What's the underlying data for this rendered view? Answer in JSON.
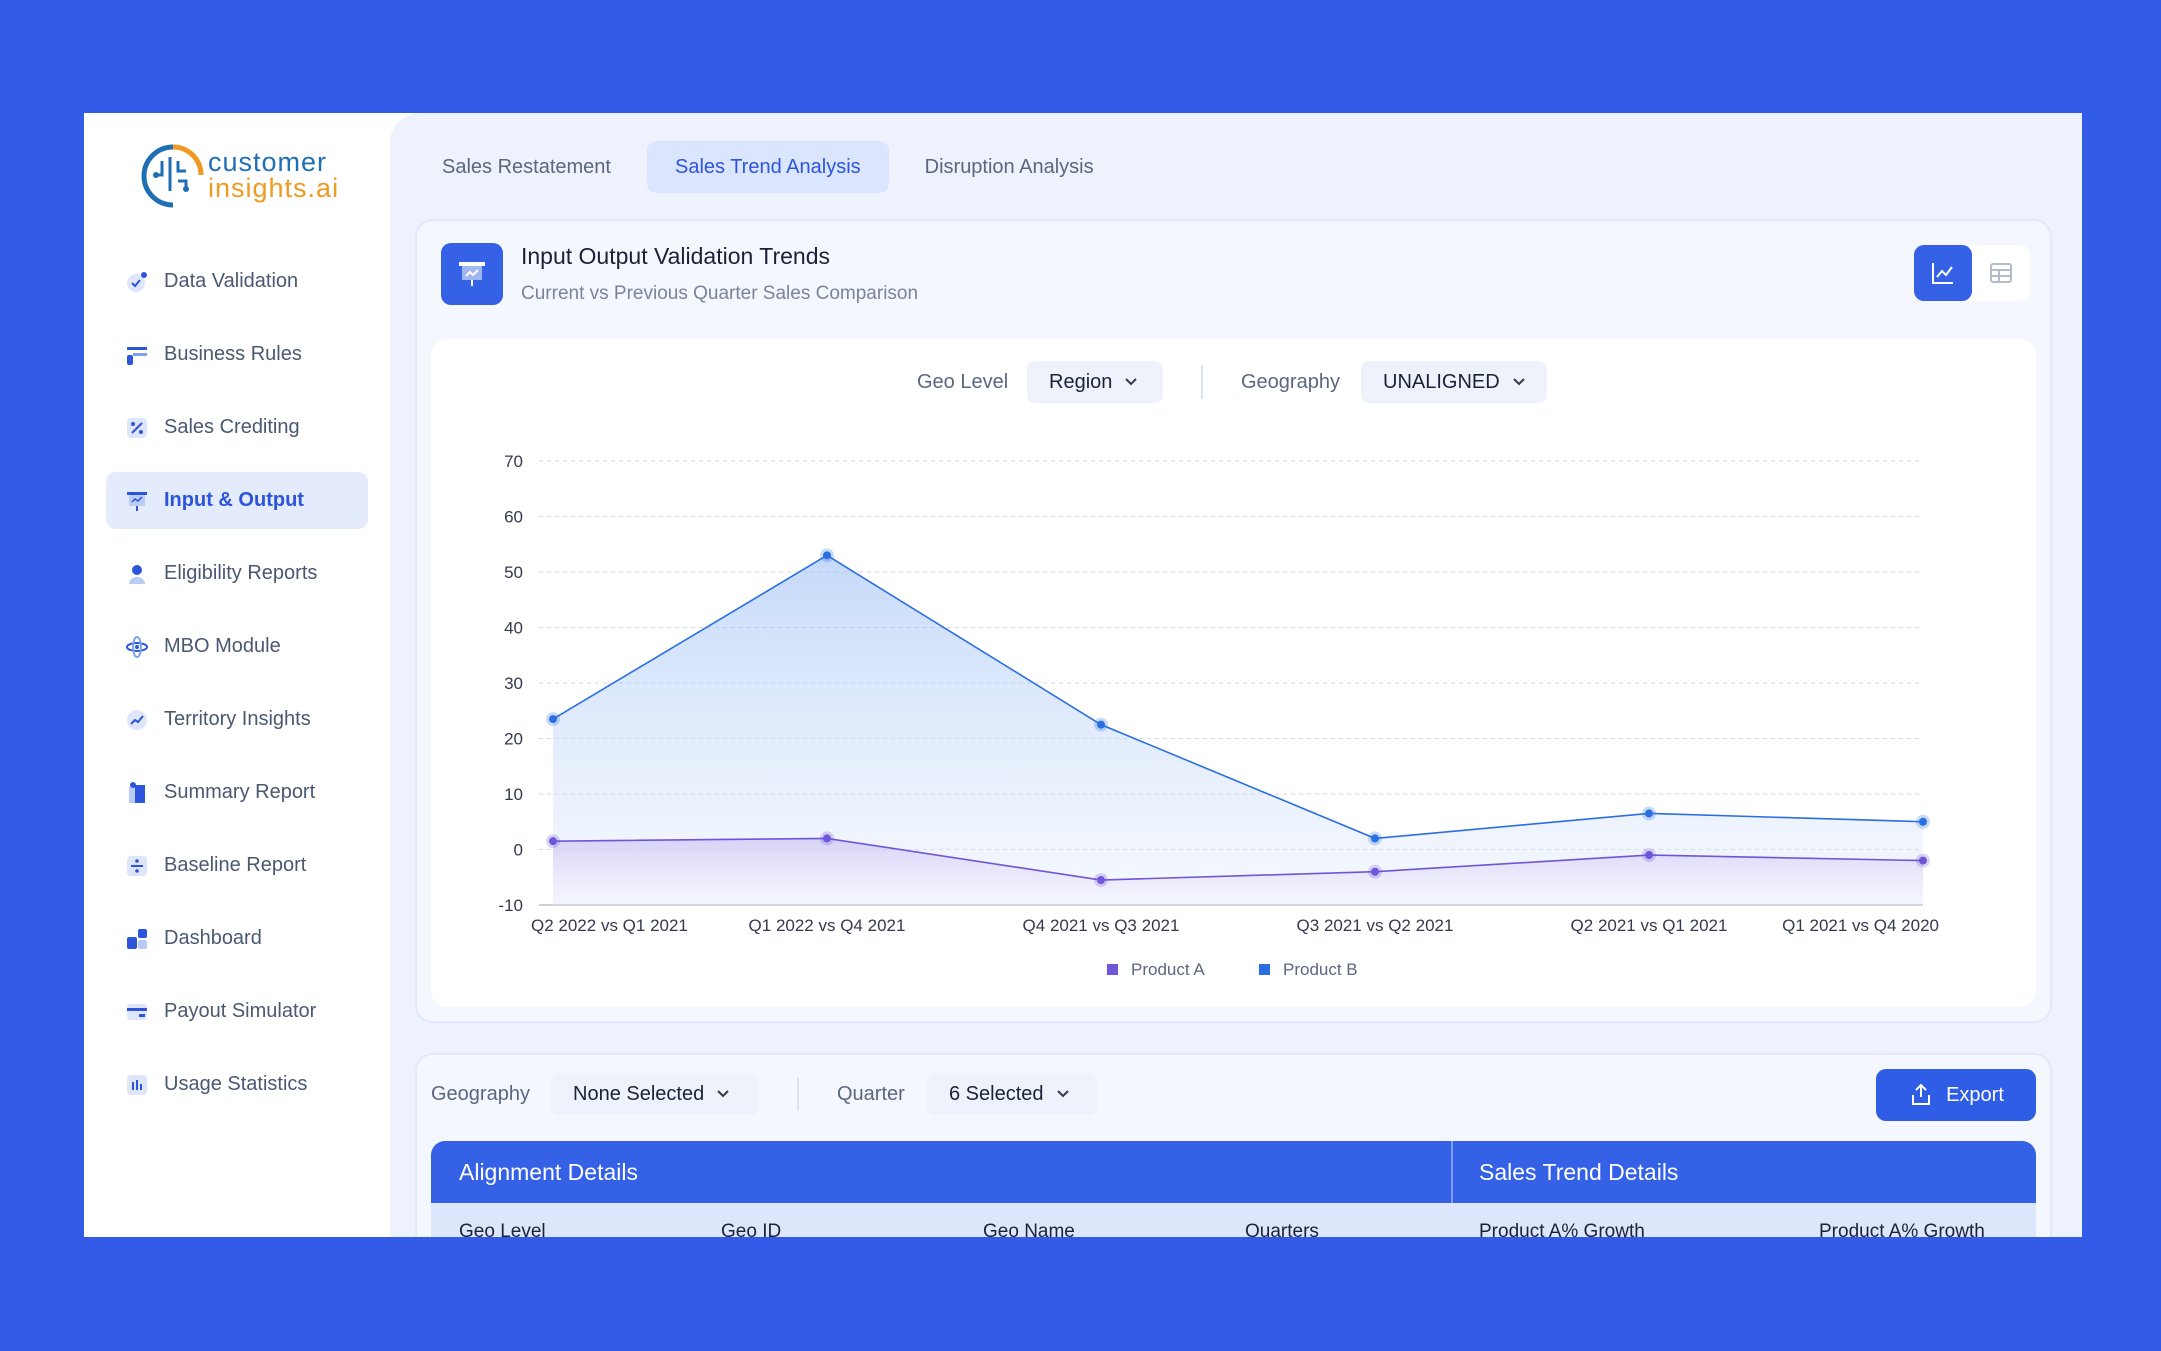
{
  "brand": {
    "line1": "customer",
    "line2": "insights.ai"
  },
  "sidebar": {
    "items": [
      {
        "label": "Data Validation",
        "icon": "check-badge-icon",
        "active": false
      },
      {
        "label": "Business Rules",
        "icon": "rules-icon",
        "active": false
      },
      {
        "label": "Sales Crediting",
        "icon": "percent-icon",
        "active": false
      },
      {
        "label": "Input & Output",
        "icon": "presentation-icon",
        "active": true
      },
      {
        "label": "Eligibility Reports",
        "icon": "user-icon",
        "active": false
      },
      {
        "label": "MBO Module",
        "icon": "atom-icon",
        "active": false
      },
      {
        "label": "Territory Insights",
        "icon": "trend-icon",
        "active": false
      },
      {
        "label": "Summary Report",
        "icon": "report-icon",
        "active": false
      },
      {
        "label": "Baseline Report",
        "icon": "divide-icon",
        "active": false
      },
      {
        "label": "Dashboard",
        "icon": "dashboard-icon",
        "active": false
      },
      {
        "label": "Payout Simulator",
        "icon": "card-icon",
        "active": false
      },
      {
        "label": "Usage Statistics",
        "icon": "bar-stats-icon",
        "active": false
      }
    ]
  },
  "tabs": [
    {
      "label": "Sales Restatement",
      "active": false
    },
    {
      "label": "Sales Trend Analysis",
      "active": true
    },
    {
      "label": "Disruption Analysis",
      "active": false
    }
  ],
  "card": {
    "title": "Input Output Validation Trends",
    "subtitle": "Current vs Previous Quarter Sales Comparison"
  },
  "filters": {
    "geo_level_label": "Geo Level",
    "geo_level_value": "Region",
    "geography_label": "Geography",
    "geography_value": "UNALIGNED"
  },
  "chart_data": {
    "type": "line",
    "categories": [
      "Q2 2022 vs Q1 2021",
      "Q1 2022 vs Q4 2021",
      "Q4 2021 vs Q3 2021",
      "Q3 2021 vs Q2 2021",
      "Q2 2021 vs Q1 2021",
      "Q1 2021 vs Q4 2020"
    ],
    "series": [
      {
        "name": "Product A",
        "color": "#6f55d9",
        "values": [
          1.5,
          2,
          -5.5,
          -4,
          -1,
          -2
        ]
      },
      {
        "name": "Product B",
        "color": "#2a6fe0",
        "values": [
          23.5,
          53,
          22.5,
          2,
          6.5,
          5
        ]
      }
    ],
    "ylim": [
      -10,
      70
    ],
    "yticks": [
      -10,
      0,
      10,
      20,
      30,
      40,
      50,
      60,
      70
    ],
    "grid": true,
    "legend": "bottom"
  },
  "bottom": {
    "geography_label": "Geography",
    "geography_value": "None Selected",
    "quarter_label": "Quarter",
    "quarter_value": "6 Selected",
    "export_label": "Export",
    "group1": "Alignment Details",
    "group2": "Sales Trend Details",
    "columns": [
      "Geo Level",
      "Geo ID",
      "Geo Name",
      "Quarters",
      "Product A% Growth",
      "Product A% Growth"
    ]
  }
}
